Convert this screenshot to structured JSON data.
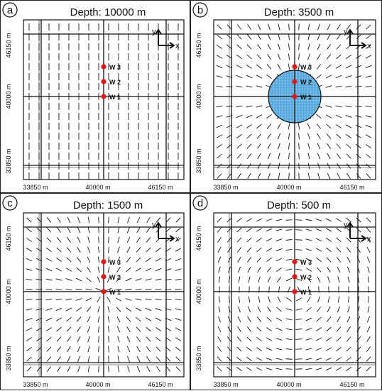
{
  "panels": [
    {
      "letter": "a",
      "title": "Depth: 10000 m",
      "field": "uniform",
      "show_axes_icon": true,
      "show_circle": false
    },
    {
      "letter": "b",
      "title": "Depth: 3500 m",
      "field": "radial",
      "show_axes_icon": true,
      "show_circle": true
    },
    {
      "letter": "c",
      "title": "Depth: 1500 m",
      "field": "radial",
      "show_axes_icon": true,
      "show_circle": false
    },
    {
      "letter": "d",
      "title": "Depth: 500 m",
      "field": "swirl",
      "show_axes_icon": true,
      "show_circle": false
    }
  ],
  "x_ticks": [
    "33850 m",
    "40000 m",
    "46150 m"
  ],
  "y_ticks": [
    "46150 m",
    "40000 m",
    "33850 m"
  ],
  "wells": [
    "W 3",
    "W 2",
    "W 1"
  ],
  "axis_labels": {
    "x": "x",
    "y": "y"
  },
  "colors": {
    "well": "#e3161c",
    "zone_fill": "#54a8dc",
    "zone_grid": "#c9e4f5",
    "line": "#111111"
  }
}
